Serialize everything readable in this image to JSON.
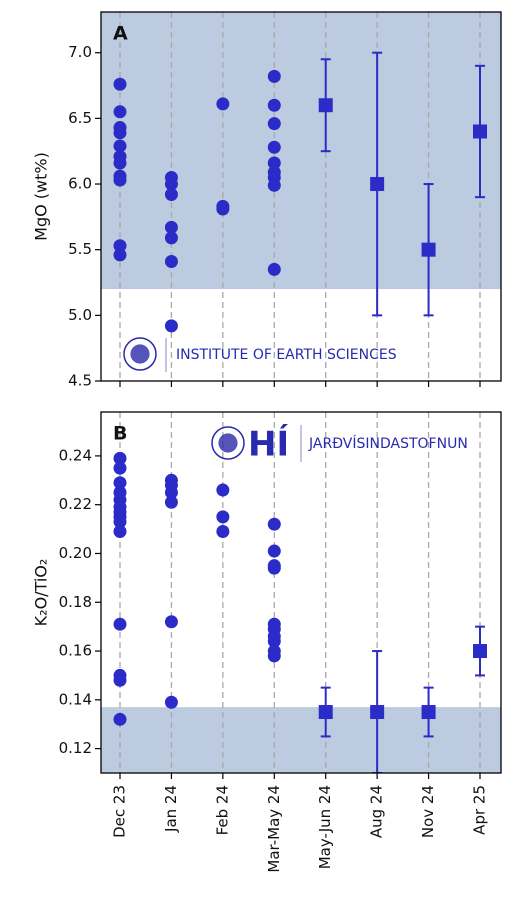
{
  "chart_data": [
    {
      "type": "scatter",
      "panel_label": "A",
      "ylabel": "MgO (wt%)",
      "ylim": [
        4.5,
        7.31
      ],
      "yticks": [
        4.5,
        {
          "value": 5.0,
          "label": "5.0"
        },
        5.5,
        {
          "value": 6.0,
          "label": "6.0"
        },
        6.5,
        {
          "value": 7.0,
          "label": "7.0"
        }
      ],
      "shade_above": 5.2,
      "shade_color": "#bccbe0",
      "grid": "x",
      "logo_text": "INSTITUTE OF EARTH SCIENCES",
      "series": [
        {
          "marker": "circle",
          "color": "#2b2bc8",
          "values": [
            [
              6.76,
              6.55,
              6.43,
              6.39,
              6.29,
              6.21,
              6.16,
              6.06,
              6.03,
              5.53,
              5.46
            ],
            [
              6.05,
              6.0,
              5.92,
              5.67,
              5.59,
              5.41,
              4.92
            ],
            [
              6.61,
              5.83,
              5.81
            ],
            [
              6.82,
              6.6,
              6.46,
              6.28,
              6.16,
              6.09,
              6.05,
              5.99,
              5.35
            ],
            null,
            null,
            null,
            null
          ]
        },
        {
          "marker": "square",
          "color": "#2b2bc8",
          "values": [
            null,
            null,
            null,
            null,
            6.6,
            6.0,
            5.5,
            6.4
          ],
          "errors": [
            null,
            null,
            null,
            null,
            0.35,
            1.0,
            0.5,
            0.5
          ]
        }
      ]
    },
    {
      "type": "scatter",
      "panel_label": "B",
      "ylabel": "K₂O/TiO₂",
      "ylim": [
        0.11,
        0.258
      ],
      "yticks": [
        0.12,
        0.14,
        0.16,
        0.18,
        {
          "value": 0.2,
          "label": "0.20"
        },
        0.22,
        0.24
      ],
      "shade_below": 0.137,
      "shade_color": "#bccbe0",
      "grid": "x",
      "logo_mark": "HÍ",
      "logo_text": "JARÐVÍSINDASTOFNUN",
      "categories": [
        "Dec 23",
        "Jan 24",
        "Feb 24",
        "Mar-May 24",
        "May-Jun 24",
        "Aug 24",
        "Nov 24",
        "Apr 25"
      ],
      "series": [
        {
          "marker": "circle",
          "color": "#2b2bc8",
          "values": [
            [
              0.239,
              0.235,
              0.229,
              0.225,
              0.222,
              0.219,
              0.217,
              0.215,
              0.213,
              0.209,
              0.171,
              0.15,
              0.148,
              0.132
            ],
            [
              0.23,
              0.228,
              0.225,
              0.221,
              0.172,
              0.139
            ],
            [
              0.226,
              0.215,
              0.209
            ],
            [
              0.212,
              0.201,
              0.195,
              0.194,
              0.171,
              0.169,
              0.166,
              0.164,
              0.16,
              0.158
            ],
            null,
            null,
            null,
            null
          ]
        },
        {
          "marker": "square",
          "color": "#2b2bc8",
          "values": [
            null,
            null,
            null,
            null,
            0.135,
            0.135,
            0.135,
            0.16
          ],
          "errors": [
            null,
            null,
            null,
            null,
            0.01,
            0.025,
            0.01,
            0.01
          ]
        }
      ]
    }
  ]
}
